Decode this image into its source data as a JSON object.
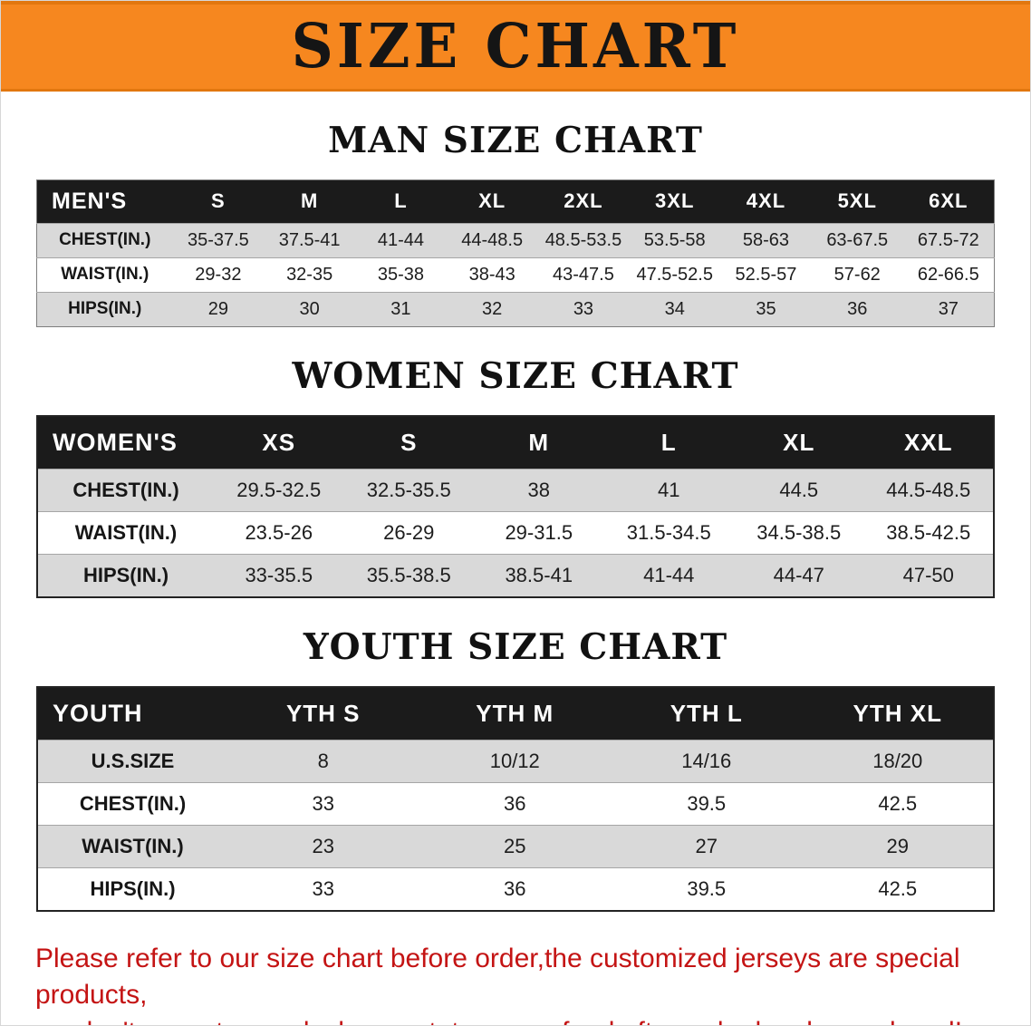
{
  "banner": {
    "title": "SIZE CHART"
  },
  "sections": [
    {
      "id": "men",
      "heading": "MAN SIZE CHART",
      "table": {
        "header": [
          "MEN'S",
          "S",
          "M",
          "L",
          "XL",
          "2XL",
          "3XL",
          "4XL",
          "5XL",
          "6XL"
        ],
        "rows": [
          [
            "CHEST(IN.)",
            "35-37.5",
            "37.5-41",
            "41-44",
            "44-48.5",
            "48.5-53.5",
            "53.5-58",
            "58-63",
            "63-67.5",
            "67.5-72"
          ],
          [
            "WAIST(IN.)",
            "29-32",
            "32-35",
            "35-38",
            "38-43",
            "43-47.5",
            "47.5-52.5",
            "52.5-57",
            "57-62",
            "62-66.5"
          ],
          [
            "HIPS(IN.)",
            "29",
            "30",
            "31",
            "32",
            "33",
            "34",
            "35",
            "36",
            "37"
          ]
        ]
      }
    },
    {
      "id": "women",
      "heading": "WOMEN SIZE CHART",
      "table": {
        "header": [
          "WOMEN'S",
          "XS",
          "S",
          "M",
          "L",
          "XL",
          "XXL"
        ],
        "rows": [
          [
            "CHEST(IN.)",
            "29.5-32.5",
            "32.5-35.5",
            "38",
            "41",
            "44.5",
            "44.5-48.5"
          ],
          [
            "WAIST(IN.)",
            "23.5-26",
            "26-29",
            "29-31.5",
            "31.5-34.5",
            "34.5-38.5",
            "38.5-42.5"
          ],
          [
            "HIPS(IN.)",
            "33-35.5",
            "35.5-38.5",
            "38.5-41",
            "41-44",
            "44-47",
            "47-50"
          ]
        ]
      }
    },
    {
      "id": "youth",
      "heading": "YOUTH SIZE CHART",
      "table": {
        "header": [
          "YOUTH",
          "YTH S",
          "YTH M",
          "YTH L",
          "YTH XL"
        ],
        "rows": [
          [
            "U.S.SIZE",
            "8",
            "10/12",
            "14/16",
            "18/20"
          ],
          [
            "CHEST(IN.)",
            "33",
            "36",
            "39.5",
            "42.5"
          ],
          [
            "WAIST(IN.)",
            "23",
            "25",
            "27",
            "29"
          ],
          [
            "HIPS(IN.)",
            "33",
            "36",
            "39.5",
            "42.5"
          ]
        ]
      }
    }
  ],
  "footer": {
    "lines": [
      "Please refer to our size chart before order,the customized jerseys are special products,",
      "we don't accept cancel, change, teturn or refund after order has been placed!"
    ]
  },
  "colors": {
    "banner_bg": "#f6871f",
    "table_header_bg": "#1b1b1b",
    "row_stripe": "#d9d9d9",
    "footer_text": "#c41414"
  }
}
